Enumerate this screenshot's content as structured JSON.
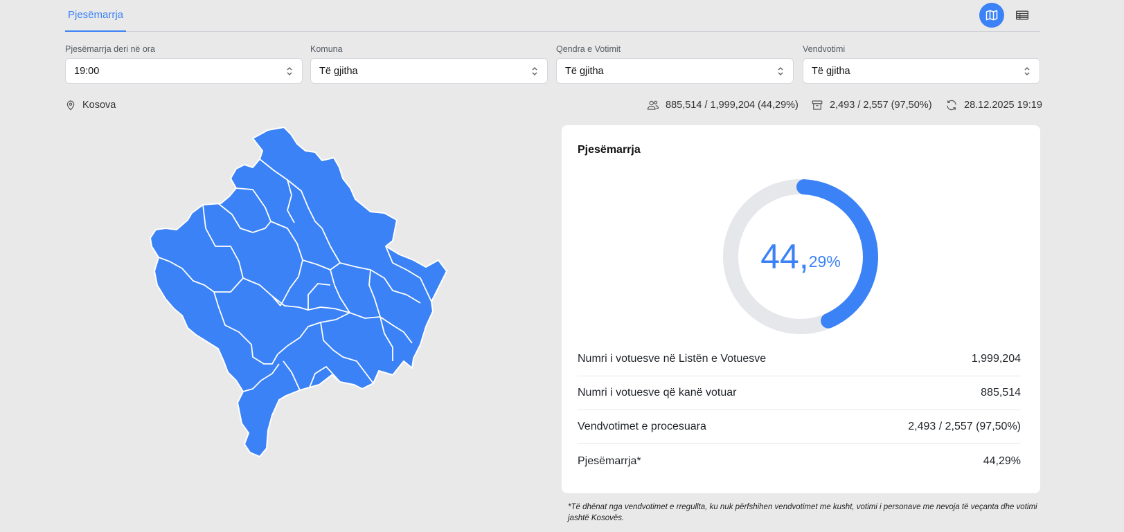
{
  "tabs": {
    "active": "Pjesëmarrja"
  },
  "view_toggle": {
    "active": "map"
  },
  "filters": [
    {
      "label": "Pjesëmarrja deri në ora",
      "value": "19:00"
    },
    {
      "label": "Komuna",
      "value": "Të gjitha"
    },
    {
      "label": "Qendra e Votimit",
      "value": "Të gjitha"
    },
    {
      "label": "Vendvotimi",
      "value": "Të gjitha"
    }
  ],
  "location": "Kosova",
  "stats": {
    "voters": "885,514 / 1,999,204 (44,29%)",
    "stations": "2,493 / 2,557 (97,50%)",
    "updated": "28.12.2025 19:19"
  },
  "card": {
    "title": "Pjesëmarrja",
    "turnout_percent": 44.29,
    "turnout_int": "44,",
    "turnout_dec": "29%",
    "rows": [
      {
        "label": "Numri i votuesve në Listën e Votuesve",
        "value": "1,999,204"
      },
      {
        "label": "Numri i votuesve që kanë votuar",
        "value": "885,514"
      },
      {
        "label": "Vendvotimet e procesuara",
        "value": "2,493 / 2,557 (97,50%)"
      },
      {
        "label": "Pjesëmarrja*",
        "value": "44,29%"
      }
    ]
  },
  "footnote": "*Të dhënat nga vendvotimet e rregullta, ku nuk përfshihen vendvotimet me kusht, votimi i personave me nevoja të veçanta dhe votimi jashtë Kosovës.",
  "colors": {
    "accent": "#3b82f6",
    "track": "#e5e7eb",
    "background": "#e9e9e9"
  }
}
